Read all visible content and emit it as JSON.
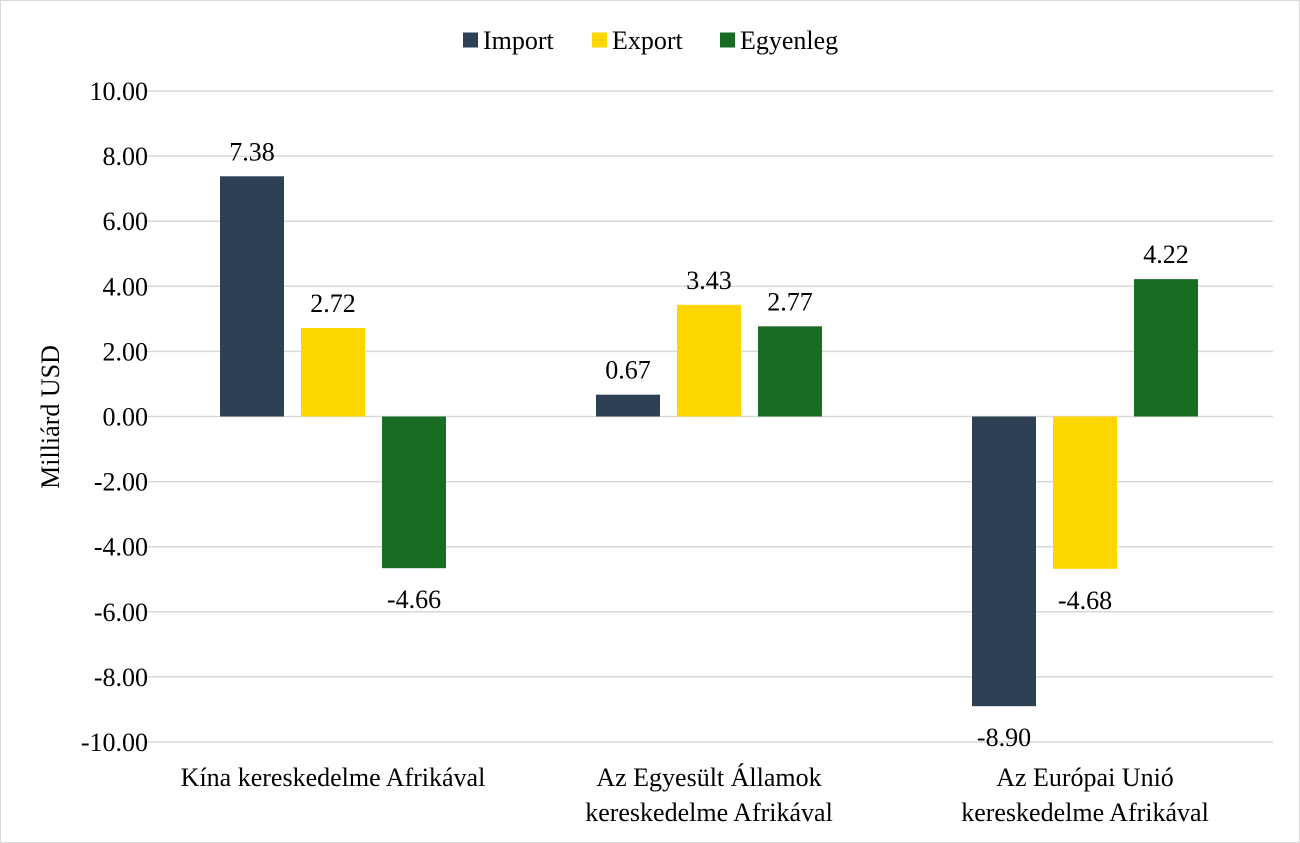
{
  "chart_data": {
    "type": "bar",
    "title": "",
    "xlabel": "",
    "ylabel": "Milliárd USD",
    "ylim": [
      -10,
      10
    ],
    "yticks": [
      10,
      8,
      6,
      4,
      2,
      0,
      -2,
      -4,
      -6,
      -8,
      -10
    ],
    "ytick_labels": [
      "10.00",
      "8.00",
      "6.00",
      "4.00",
      "2.00",
      "0.00",
      "-2.00",
      "-4.00",
      "-6.00",
      "-8.00",
      "-10.00"
    ],
    "grid": true,
    "legend_position": "top",
    "categories": [
      [
        "Kína kereskedelme Afrikával"
      ],
      [
        "Az Egyesült Államok",
        "kereskedelme Afrikával"
      ],
      [
        "Az Európai Unió",
        "kereskedelme Afrikával"
      ]
    ],
    "series": [
      {
        "name": "Import",
        "color": "#2e4053",
        "values": [
          7.38,
          0.67,
          -8.9
        ],
        "labels": [
          "7.38",
          "0.67",
          "-8.90"
        ]
      },
      {
        "name": "Export",
        "color": "#ffd700",
        "values": [
          2.72,
          3.43,
          -4.68
        ],
        "labels": [
          "2.72",
          "3.43",
          "-4.68"
        ]
      },
      {
        "name": "Egyenleg",
        "color": "#1a6b24",
        "values": [
          -4.66,
          2.77,
          4.22
        ],
        "labels": [
          "-4.66",
          "2.77",
          "4.22"
        ]
      }
    ]
  }
}
